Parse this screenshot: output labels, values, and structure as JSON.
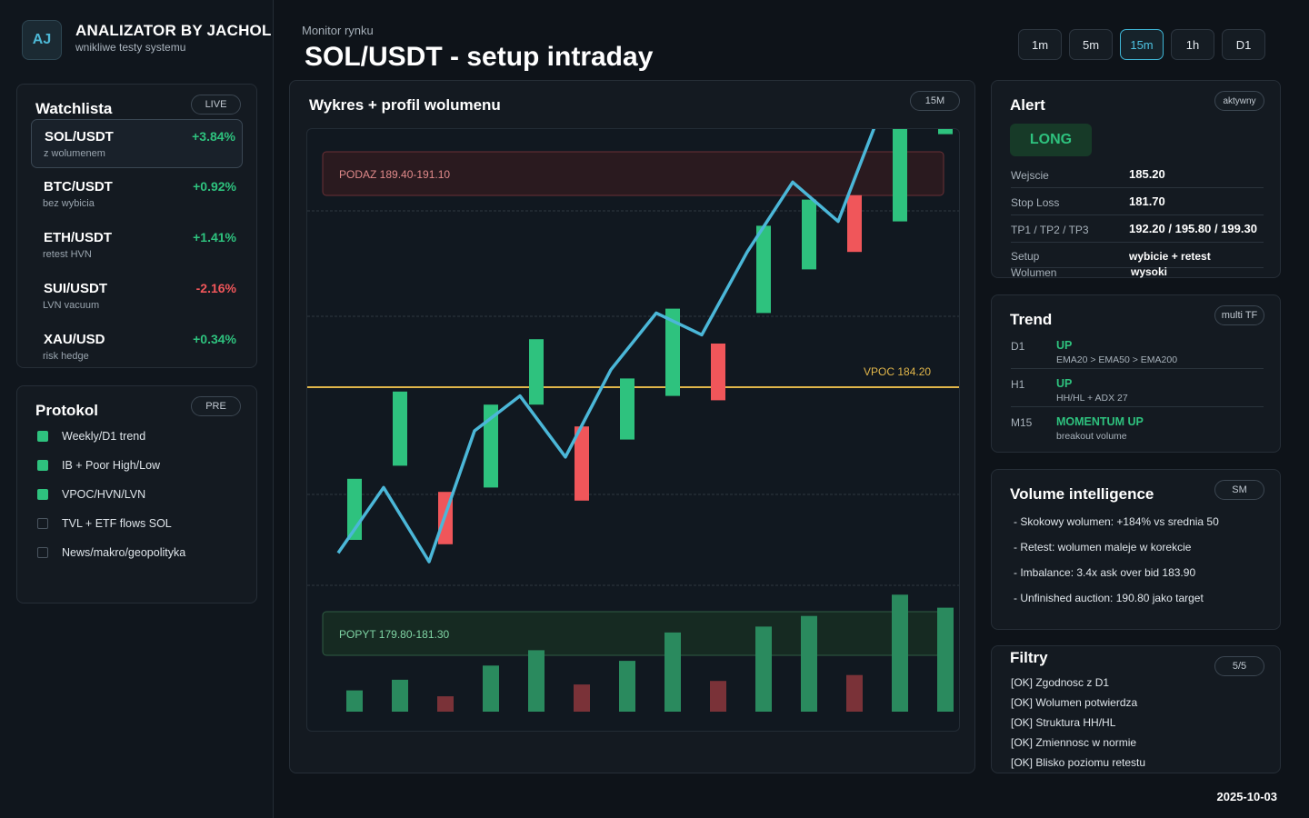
{
  "brand": {
    "logo": "AJ",
    "title": "ANALIZATOR BY JACHOL",
    "subtitle": "wnikliwe testy systemu"
  },
  "watchlist": {
    "title": "Watchlista",
    "badge": "LIVE",
    "items": [
      {
        "symbol": "SOL/USDT",
        "note": "z wolumenem",
        "change": "+3.84%",
        "direction": "up",
        "active": true
      },
      {
        "symbol": "BTC/USDT",
        "note": "bez wybicia",
        "change": "+0.92%",
        "direction": "up",
        "active": false
      },
      {
        "symbol": "ETH/USDT",
        "note": "retest HVN",
        "change": "+1.41%",
        "direction": "up",
        "active": false
      },
      {
        "symbol": "SUI/USDT",
        "note": "LVN vacuum",
        "change": "-2.16%",
        "direction": "down",
        "active": false
      },
      {
        "symbol": "XAU/USD",
        "note": "risk hedge",
        "change": "+0.34%",
        "direction": "up",
        "active": false
      }
    ]
  },
  "protocol": {
    "title": "Protokol",
    "badge": "PRE",
    "items": [
      {
        "label": "Weekly/D1 trend",
        "checked": true
      },
      {
        "label": "IB + Poor High/Low",
        "checked": true
      },
      {
        "label": "VPOC/HVN/LVN",
        "checked": true
      },
      {
        "label": "TVL + ETF flows SOL",
        "checked": false
      },
      {
        "label": "News/makro/geopolityka",
        "checked": false
      }
    ]
  },
  "header": {
    "subtitle": "Monitor rynku",
    "title": "SOL/USDT - setup intraday"
  },
  "timeframes": {
    "options": [
      "1m",
      "5m",
      "15m",
      "1h",
      "D1"
    ],
    "selected": "15m"
  },
  "chart_panel": {
    "title": "Wykres + profil wolumenu",
    "badge": "15M"
  },
  "chart_data": {
    "type": "candlestick",
    "supply_zone": {
      "label": "PODAZ 189.40-191.10",
      "low": 189.4,
      "high": 191.1
    },
    "demand_zone": {
      "label": "POPYT 179.80-181.30",
      "low": 179.8,
      "high": 181.3
    },
    "vpoc": {
      "label": "VPOC 184.20",
      "value": 184.2
    },
    "candles": [
      {
        "open": 180.7,
        "close": 182.1,
        "dir": "up"
      },
      {
        "open": 182.4,
        "close": 184.1,
        "dir": "up"
      },
      {
        "open": 181.8,
        "close": 180.6,
        "dir": "down"
      },
      {
        "open": 181.9,
        "close": 183.8,
        "dir": "up"
      },
      {
        "open": 183.8,
        "close": 185.3,
        "dir": "up"
      },
      {
        "open": 183.3,
        "close": 181.6,
        "dir": "down"
      },
      {
        "open": 183.0,
        "close": 184.4,
        "dir": "up"
      },
      {
        "open": 184.0,
        "close": 186.0,
        "dir": "up"
      },
      {
        "open": 185.2,
        "close": 183.9,
        "dir": "down"
      },
      {
        "open": 185.9,
        "close": 187.9,
        "dir": "up"
      },
      {
        "open": 186.9,
        "close": 188.5,
        "dir": "up"
      },
      {
        "open": 188.6,
        "close": 187.3,
        "dir": "down"
      },
      {
        "open": 188.0,
        "close": 190.2,
        "dir": "up"
      },
      {
        "open": 190.0,
        "close": 191.5,
        "dir": "up"
      }
    ],
    "line": [
      180.4,
      181.9,
      180.2,
      183.2,
      184.0,
      182.6,
      184.6,
      185.9,
      185.4,
      187.3,
      188.9,
      188.0,
      190.7,
      191.9
    ],
    "volumes": [
      18,
      27,
      13,
      39,
      52,
      23,
      43,
      67,
      26,
      72,
      81,
      31,
      99,
      88
    ]
  },
  "alert": {
    "title": "Alert",
    "badge": "aktywny",
    "signal": "LONG",
    "rows": [
      {
        "label": "Wejscie",
        "value": "185.20"
      },
      {
        "label": "Stop Loss",
        "value": "181.70"
      },
      {
        "label": "TP1 / TP2 / TP3",
        "value": "192.20 / 195.80 / 199.30"
      },
      {
        "label": "Setup",
        "value": "wybicie + retest"
      },
      {
        "label": "Wolumen",
        "value": "wysoki"
      }
    ]
  },
  "trend": {
    "title": "Trend",
    "badge": "multi TF",
    "rows": [
      {
        "tf": "D1",
        "value": "UP",
        "note": "EMA20 > EMA50 > EMA200"
      },
      {
        "tf": "H1",
        "value": "UP",
        "note": "HH/HL + ADX 27"
      },
      {
        "tf": "M15",
        "value": "MOMENTUM UP",
        "note": "breakout volume"
      }
    ]
  },
  "volume_intel": {
    "title": "Volume intelligence",
    "badge": "SM",
    "lines": [
      "- Skokowy wolumen: +184% vs srednia 50",
      "- Retest: wolumen maleje w korekcie",
      "- Imbalance: 3.4x ask over bid 183.90",
      "- Unfinished auction: 190.80 jako target"
    ]
  },
  "filters": {
    "title": "Filtry",
    "badge": "5/5",
    "lines": [
      "[OK] Zgodnosc z D1",
      "[OK] Wolumen potwierdza",
      "[OK] Struktura HH/HL",
      "[OK] Zmiennosc w normie",
      "[OK] Blisko poziomu retestu"
    ]
  },
  "footer": {
    "date": "2025-10-03"
  },
  "colors": {
    "up": "#2ec27e",
    "down": "#f0565a",
    "line": "#4bb7d8",
    "vpoc": "#e0b54a",
    "accent": "#3fb6d6"
  }
}
